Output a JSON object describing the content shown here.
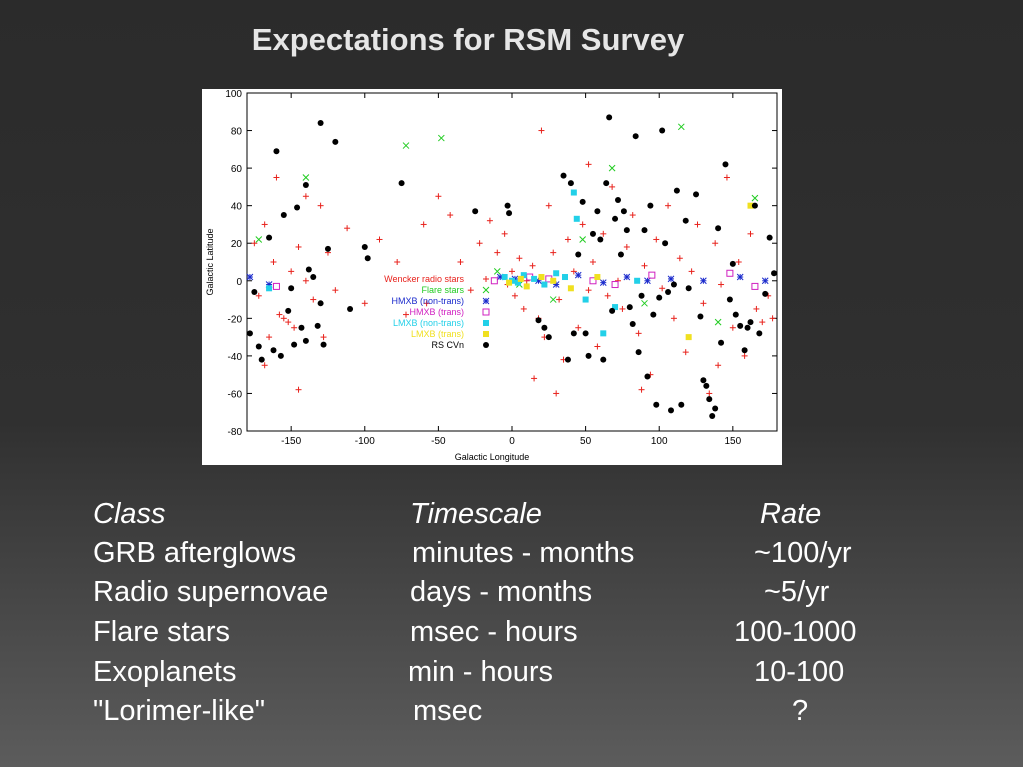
{
  "slide_title": "Expectations for RSM Survey",
  "chart_data": {
    "type": "scatter",
    "title": "",
    "xlabel": "Galactic Longitude",
    "ylabel": "Galactic Latitude",
    "xlim": [
      -180,
      180
    ],
    "ylim": [
      -80,
      100
    ],
    "xreversed": false,
    "x_ticks": [
      -150,
      -100,
      -50,
      0,
      50,
      100,
      150
    ],
    "y_ticks": [
      100,
      80,
      60,
      40,
      20,
      0,
      -20,
      -40,
      -60,
      -80
    ],
    "grid": false,
    "legend_position": "center-left",
    "series": [
      {
        "name": "Wencker radio stars",
        "marker": "+",
        "color": "#e8221c",
        "points": [
          [
            -175,
            20
          ],
          [
            -172,
            -8
          ],
          [
            -168,
            30
          ],
          [
            -165,
            -30
          ],
          [
            -162,
            10
          ],
          [
            -158,
            -18
          ],
          [
            -155,
            -20
          ],
          [
            -152,
            -22
          ],
          [
            -150,
            5
          ],
          [
            -148,
            -25
          ],
          [
            -145,
            18
          ],
          [
            -140,
            0
          ],
          [
            -135,
            -10
          ],
          [
            -130,
            40
          ],
          [
            -128,
            -30
          ],
          [
            -125,
            15
          ],
          [
            -120,
            -5
          ],
          [
            -112,
            28
          ],
          [
            -100,
            -12
          ],
          [
            -90,
            22
          ],
          [
            -78,
            10
          ],
          [
            -72,
            -18
          ],
          [
            -60,
            30
          ],
          [
            -50,
            45
          ],
          [
            -42,
            35
          ],
          [
            -35,
            10
          ],
          [
            -28,
            -5
          ],
          [
            -22,
            20
          ],
          [
            -15,
            32
          ],
          [
            -10,
            15
          ],
          [
            -5,
            25
          ],
          [
            -3,
            -2
          ],
          [
            0,
            5
          ],
          [
            2,
            -8
          ],
          [
            5,
            12
          ],
          [
            8,
            -15
          ],
          [
            10,
            0
          ],
          [
            14,
            8
          ],
          [
            18,
            -20
          ],
          [
            22,
            -30
          ],
          [
            25,
            40
          ],
          [
            28,
            15
          ],
          [
            32,
            -10
          ],
          [
            35,
            -42
          ],
          [
            38,
            22
          ],
          [
            42,
            5
          ],
          [
            45,
            -25
          ],
          [
            48,
            30
          ],
          [
            52,
            -5
          ],
          [
            55,
            10
          ],
          [
            58,
            -35
          ],
          [
            62,
            25
          ],
          [
            65,
            -8
          ],
          [
            68,
            50
          ],
          [
            72,
            0
          ],
          [
            75,
            -15
          ],
          [
            78,
            18
          ],
          [
            82,
            35
          ],
          [
            86,
            -28
          ],
          [
            90,
            8
          ],
          [
            94,
            -50
          ],
          [
            98,
            22
          ],
          [
            102,
            -4
          ],
          [
            106,
            40
          ],
          [
            110,
            -20
          ],
          [
            114,
            12
          ],
          [
            118,
            -38
          ],
          [
            122,
            5
          ],
          [
            126,
            30
          ],
          [
            130,
            -12
          ],
          [
            134,
            -60
          ],
          [
            138,
            20
          ],
          [
            142,
            -2
          ],
          [
            146,
            55
          ],
          [
            150,
            -25
          ],
          [
            154,
            10
          ],
          [
            158,
            -40
          ],
          [
            162,
            25
          ],
          [
            166,
            -15
          ],
          [
            170,
            -22
          ],
          [
            174,
            -8
          ],
          [
            177,
            -20
          ],
          [
            -168,
            -45
          ],
          [
            -160,
            55
          ],
          [
            -145,
            -58
          ],
          [
            -140,
            45
          ],
          [
            -58,
            -12
          ],
          [
            15,
            -52
          ],
          [
            30,
            -60
          ],
          [
            52,
            62
          ],
          [
            20,
            80
          ],
          [
            88,
            -58
          ],
          [
            140,
            -45
          ]
        ]
      },
      {
        "name": "Flare stars",
        "marker": "x",
        "color": "#22cc22",
        "points": [
          [
            -172,
            22
          ],
          [
            -140,
            55
          ],
          [
            -72,
            72
          ],
          [
            -48,
            76
          ],
          [
            -10,
            5
          ],
          [
            5,
            -2
          ],
          [
            28,
            -10
          ],
          [
            48,
            22
          ],
          [
            68,
            60
          ],
          [
            90,
            -12
          ],
          [
            115,
            82
          ],
          [
            140,
            -22
          ],
          [
            165,
            44
          ]
        ]
      },
      {
        "name": "HMXB (non-trans)",
        "marker": "*",
        "color": "#1a2acc",
        "points": [
          [
            -178,
            2
          ],
          [
            -165,
            -2
          ],
          [
            -8,
            2
          ],
          [
            2,
            1
          ],
          [
            18,
            0
          ],
          [
            30,
            -2
          ],
          [
            45,
            3
          ],
          [
            62,
            -1
          ],
          [
            78,
            2
          ],
          [
            92,
            0
          ],
          [
            108,
            1
          ],
          [
            130,
            0
          ],
          [
            155,
            2
          ],
          [
            172,
            0
          ]
        ]
      },
      {
        "name": "HMXB (trans)",
        "marker": "square-open",
        "color": "#d020c0",
        "points": [
          [
            -160,
            -3
          ],
          [
            -12,
            0
          ],
          [
            12,
            2
          ],
          [
            25,
            1
          ],
          [
            55,
            0
          ],
          [
            70,
            -2
          ],
          [
            95,
            3
          ],
          [
            148,
            4
          ],
          [
            165,
            -3
          ]
        ]
      },
      {
        "name": "LMXB (non-trans)",
        "marker": "square-filled",
        "color": "#22d0e8",
        "points": [
          [
            -165,
            -4
          ],
          [
            -5,
            2
          ],
          [
            0,
            0
          ],
          [
            4,
            -1
          ],
          [
            8,
            3
          ],
          [
            15,
            1
          ],
          [
            22,
            -2
          ],
          [
            30,
            4
          ],
          [
            36,
            2
          ],
          [
            42,
            47
          ],
          [
            44,
            33
          ],
          [
            50,
            -10
          ],
          [
            62,
            -28
          ],
          [
            70,
            -14
          ],
          [
            85,
            0
          ]
        ]
      },
      {
        "name": "LMXB (trans)",
        "marker": "square-filled",
        "color": "#f0e020",
        "points": [
          [
            -2,
            -1
          ],
          [
            6,
            1
          ],
          [
            10,
            -3
          ],
          [
            20,
            2
          ],
          [
            28,
            0
          ],
          [
            40,
            -4
          ],
          [
            58,
            2
          ],
          [
            120,
            -30
          ],
          [
            162,
            40
          ]
        ]
      },
      {
        "name": "RS CVn",
        "marker": "dot",
        "color": "#000000",
        "points": [
          [
            -170,
            -42
          ],
          [
            -165,
            23
          ],
          [
            -162,
            -37
          ],
          [
            -160,
            69
          ],
          [
            -157,
            -40
          ],
          [
            -155,
            35
          ],
          [
            -152,
            -16
          ],
          [
            -150,
            -4
          ],
          [
            -148,
            -34
          ],
          [
            -146,
            39
          ],
          [
            -143,
            -25
          ],
          [
            -140,
            51
          ],
          [
            -138,
            6
          ],
          [
            -135,
            2
          ],
          [
            -132,
            -24
          ],
          [
            -130,
            84
          ],
          [
            -128,
            -34
          ],
          [
            -125,
            17
          ],
          [
            -120,
            74
          ],
          [
            -100,
            18
          ],
          [
            -98,
            12
          ],
          [
            -75,
            52
          ],
          [
            -25,
            37
          ],
          [
            -3,
            40
          ],
          [
            -2,
            36
          ],
          [
            18,
            -21
          ],
          [
            22,
            -25
          ],
          [
            25,
            -30
          ],
          [
            35,
            56
          ],
          [
            38,
            -42
          ],
          [
            40,
            52
          ],
          [
            42,
            -28
          ],
          [
            45,
            14
          ],
          [
            48,
            42
          ],
          [
            50,
            -28
          ],
          [
            52,
            -40
          ],
          [
            55,
            25
          ],
          [
            58,
            37
          ],
          [
            60,
            22
          ],
          [
            62,
            -42
          ],
          [
            64,
            52
          ],
          [
            66,
            87
          ],
          [
            68,
            -16
          ],
          [
            70,
            33
          ],
          [
            72,
            43
          ],
          [
            74,
            14
          ],
          [
            76,
            37
          ],
          [
            78,
            27
          ],
          [
            80,
            -14
          ],
          [
            82,
            -23
          ],
          [
            84,
            77
          ],
          [
            86,
            -38
          ],
          [
            88,
            -8
          ],
          [
            90,
            27
          ],
          [
            92,
            -51
          ],
          [
            94,
            40
          ],
          [
            96,
            -18
          ],
          [
            98,
            -66
          ],
          [
            100,
            -9
          ],
          [
            102,
            80
          ],
          [
            104,
            20
          ],
          [
            106,
            -6
          ],
          [
            108,
            -69
          ],
          [
            110,
            -2
          ],
          [
            112,
            48
          ],
          [
            115,
            -66
          ],
          [
            118,
            32
          ],
          [
            120,
            -4
          ],
          [
            125,
            46
          ],
          [
            128,
            -19
          ],
          [
            130,
            -53
          ],
          [
            132,
            -56
          ],
          [
            134,
            -63
          ],
          [
            136,
            -72
          ],
          [
            138,
            -68
          ],
          [
            140,
            28
          ],
          [
            142,
            -33
          ],
          [
            145,
            62
          ],
          [
            148,
            -10
          ],
          [
            150,
            9
          ],
          [
            152,
            -18
          ],
          [
            155,
            -24
          ],
          [
            158,
            -37
          ],
          [
            160,
            -25
          ],
          [
            162,
            -22
          ],
          [
            165,
            40
          ],
          [
            168,
            -28
          ],
          [
            172,
            -7
          ],
          [
            175,
            23
          ],
          [
            178,
            4
          ],
          [
            -178,
            -28
          ],
          [
            -175,
            -6
          ],
          [
            -172,
            -35
          ],
          [
            -130,
            -12
          ],
          [
            -110,
            -15
          ],
          [
            -140,
            -32
          ]
        ]
      }
    ]
  },
  "table": {
    "headers": [
      "Class",
      "Timescale",
      "Rate"
    ],
    "rows": [
      [
        "GRB afterglows",
        "minutes - months",
        "~100/yr"
      ],
      [
        "Radio supernovae",
        "days - months",
        "~5/yr"
      ],
      [
        "Flare stars",
        "msec - hours",
        "100-1000"
      ],
      [
        "Exoplanets",
        "min - hours",
        "10-100"
      ],
      [
        "\"Lorimer-like\"",
        "msec",
        "?"
      ]
    ]
  }
}
